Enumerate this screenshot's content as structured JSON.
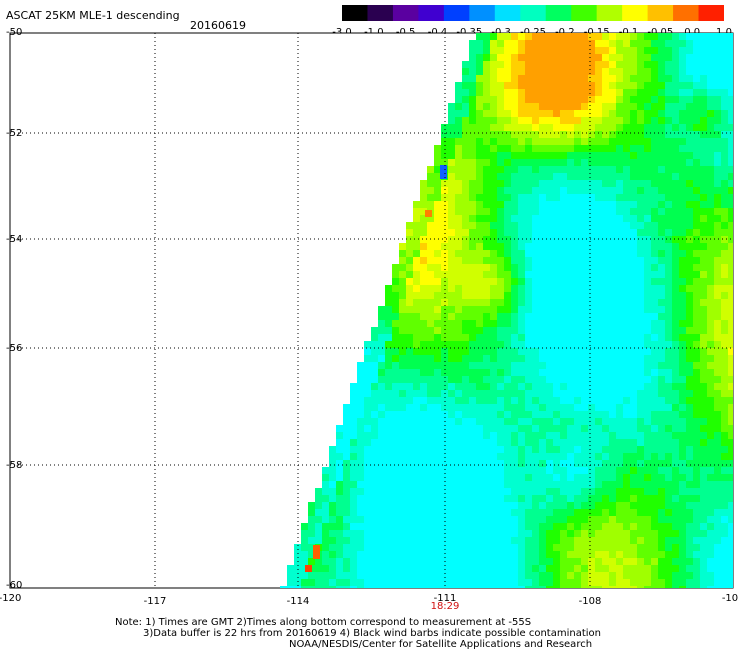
{
  "title": "ASCAT 25KM MLE-1 descending",
  "date": "20160619",
  "colorbar": {
    "ticks": [
      "-3.0",
      "-1.0",
      "-0.5",
      "-0.4",
      "-0.35",
      "-0.3",
      "-0.25",
      "-0.2",
      "-0.15",
      "-0.1",
      "-0.05",
      "0.0",
      "1.0"
    ],
    "colors": [
      "#000000",
      "#2a0050",
      "#5a00a0",
      "#4000d0",
      "#0040ff",
      "#0090ff",
      "#00e0ff",
      "#00ffc0",
      "#00ff60",
      "#40ff00",
      "#b0ff00",
      "#ffff00",
      "#ffc000",
      "#ff7000",
      "#ff2000"
    ]
  },
  "axes": {
    "y_labels": [
      "-50",
      "-52",
      "-54",
      "-56",
      "-58",
      "-60"
    ],
    "x_labels": [
      "-120",
      "-117",
      "-114",
      "-111",
      "-108",
      "-10"
    ],
    "time_label": "18:29"
  },
  "notes": [
    "Note: 1) Times are GMT 2)Times along bottom correspond to measurement at -55S",
    "3)Data buffer is 22 hrs from 20160619 4) Black wind barbs indicate possible contamination",
    "NOAA/NESDIS/Center for Satellite Applications and Research"
  ]
}
